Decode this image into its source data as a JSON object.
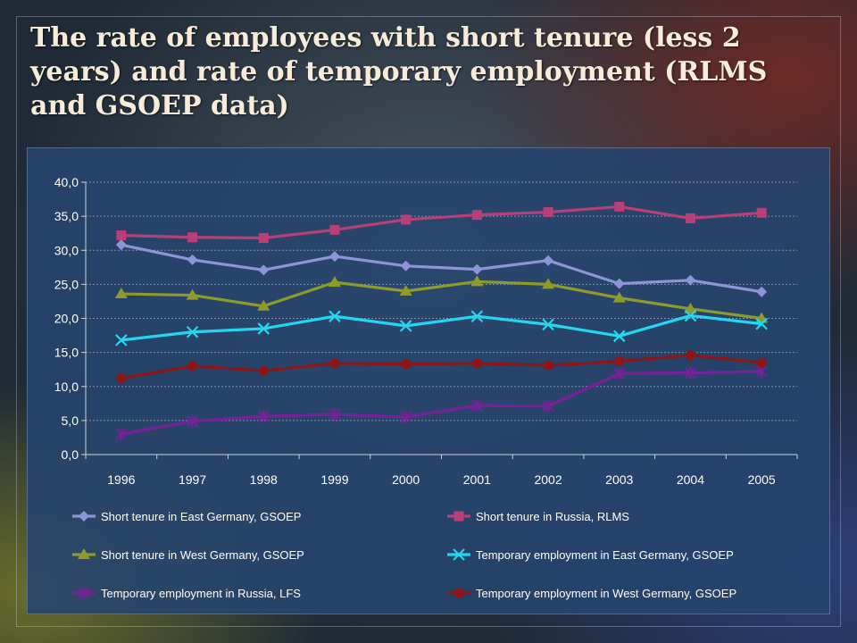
{
  "slide": {
    "title": "The rate of employees with short tenure (less 2 years) and rate of temporary employment (RLMS and GSOEP data)"
  },
  "chart_data": {
    "type": "line",
    "title": "",
    "xlabel": "",
    "ylabel": "",
    "ylim": [
      0,
      40
    ],
    "yticks": [
      "0,0",
      "5,0",
      "10,0",
      "15,0",
      "20,0",
      "25,0",
      "30,0",
      "35,0",
      "40,0"
    ],
    "categories": [
      "1996",
      "1997",
      "1998",
      "1999",
      "2000",
      "2001",
      "2002",
      "2003",
      "2004",
      "2005"
    ],
    "grid": true,
    "legend_position": "bottom",
    "series": [
      {
        "name": "Short tenure in East Germany, GSOEP",
        "color": "#8e95d6",
        "marker": "diamond",
        "values": [
          30.8,
          28.6,
          27.1,
          29.1,
          27.7,
          27.2,
          28.5,
          25.1,
          25.6,
          23.9
        ]
      },
      {
        "name": "Short tenure in Russia, RLMS",
        "color": "#b83f78",
        "marker": "square",
        "values": [
          32.2,
          31.9,
          31.8,
          33.0,
          34.5,
          35.2,
          35.6,
          36.4,
          34.7,
          35.5
        ]
      },
      {
        "name": "Short tenure in West Germany, GSOEP",
        "color": "#8e9a2a",
        "marker": "triangle",
        "values": [
          23.6,
          23.4,
          21.8,
          25.3,
          24.0,
          25.4,
          25.0,
          23.0,
          21.4,
          20.0
        ]
      },
      {
        "name": "Temporary employment in East Germany, GSOEP",
        "color": "#22d8f0",
        "marker": "x",
        "values": [
          16.8,
          18.0,
          18.5,
          20.3,
          18.9,
          20.3,
          19.1,
          17.4,
          20.4,
          19.2
        ]
      },
      {
        "name": "Temporary employment in Russia, LFS",
        "color": "#7a1f9a",
        "marker": "star",
        "values": [
          3.0,
          4.9,
          5.6,
          5.9,
          5.5,
          7.2,
          7.1,
          11.9,
          12.0,
          12.2
        ]
      },
      {
        "name": "Temporary employment in West Germany, GSOEP",
        "color": "#8e1616",
        "marker": "circle",
        "values": [
          11.2,
          13.0,
          12.3,
          13.4,
          13.3,
          13.4,
          13.1,
          13.7,
          14.6,
          13.5
        ]
      }
    ]
  }
}
